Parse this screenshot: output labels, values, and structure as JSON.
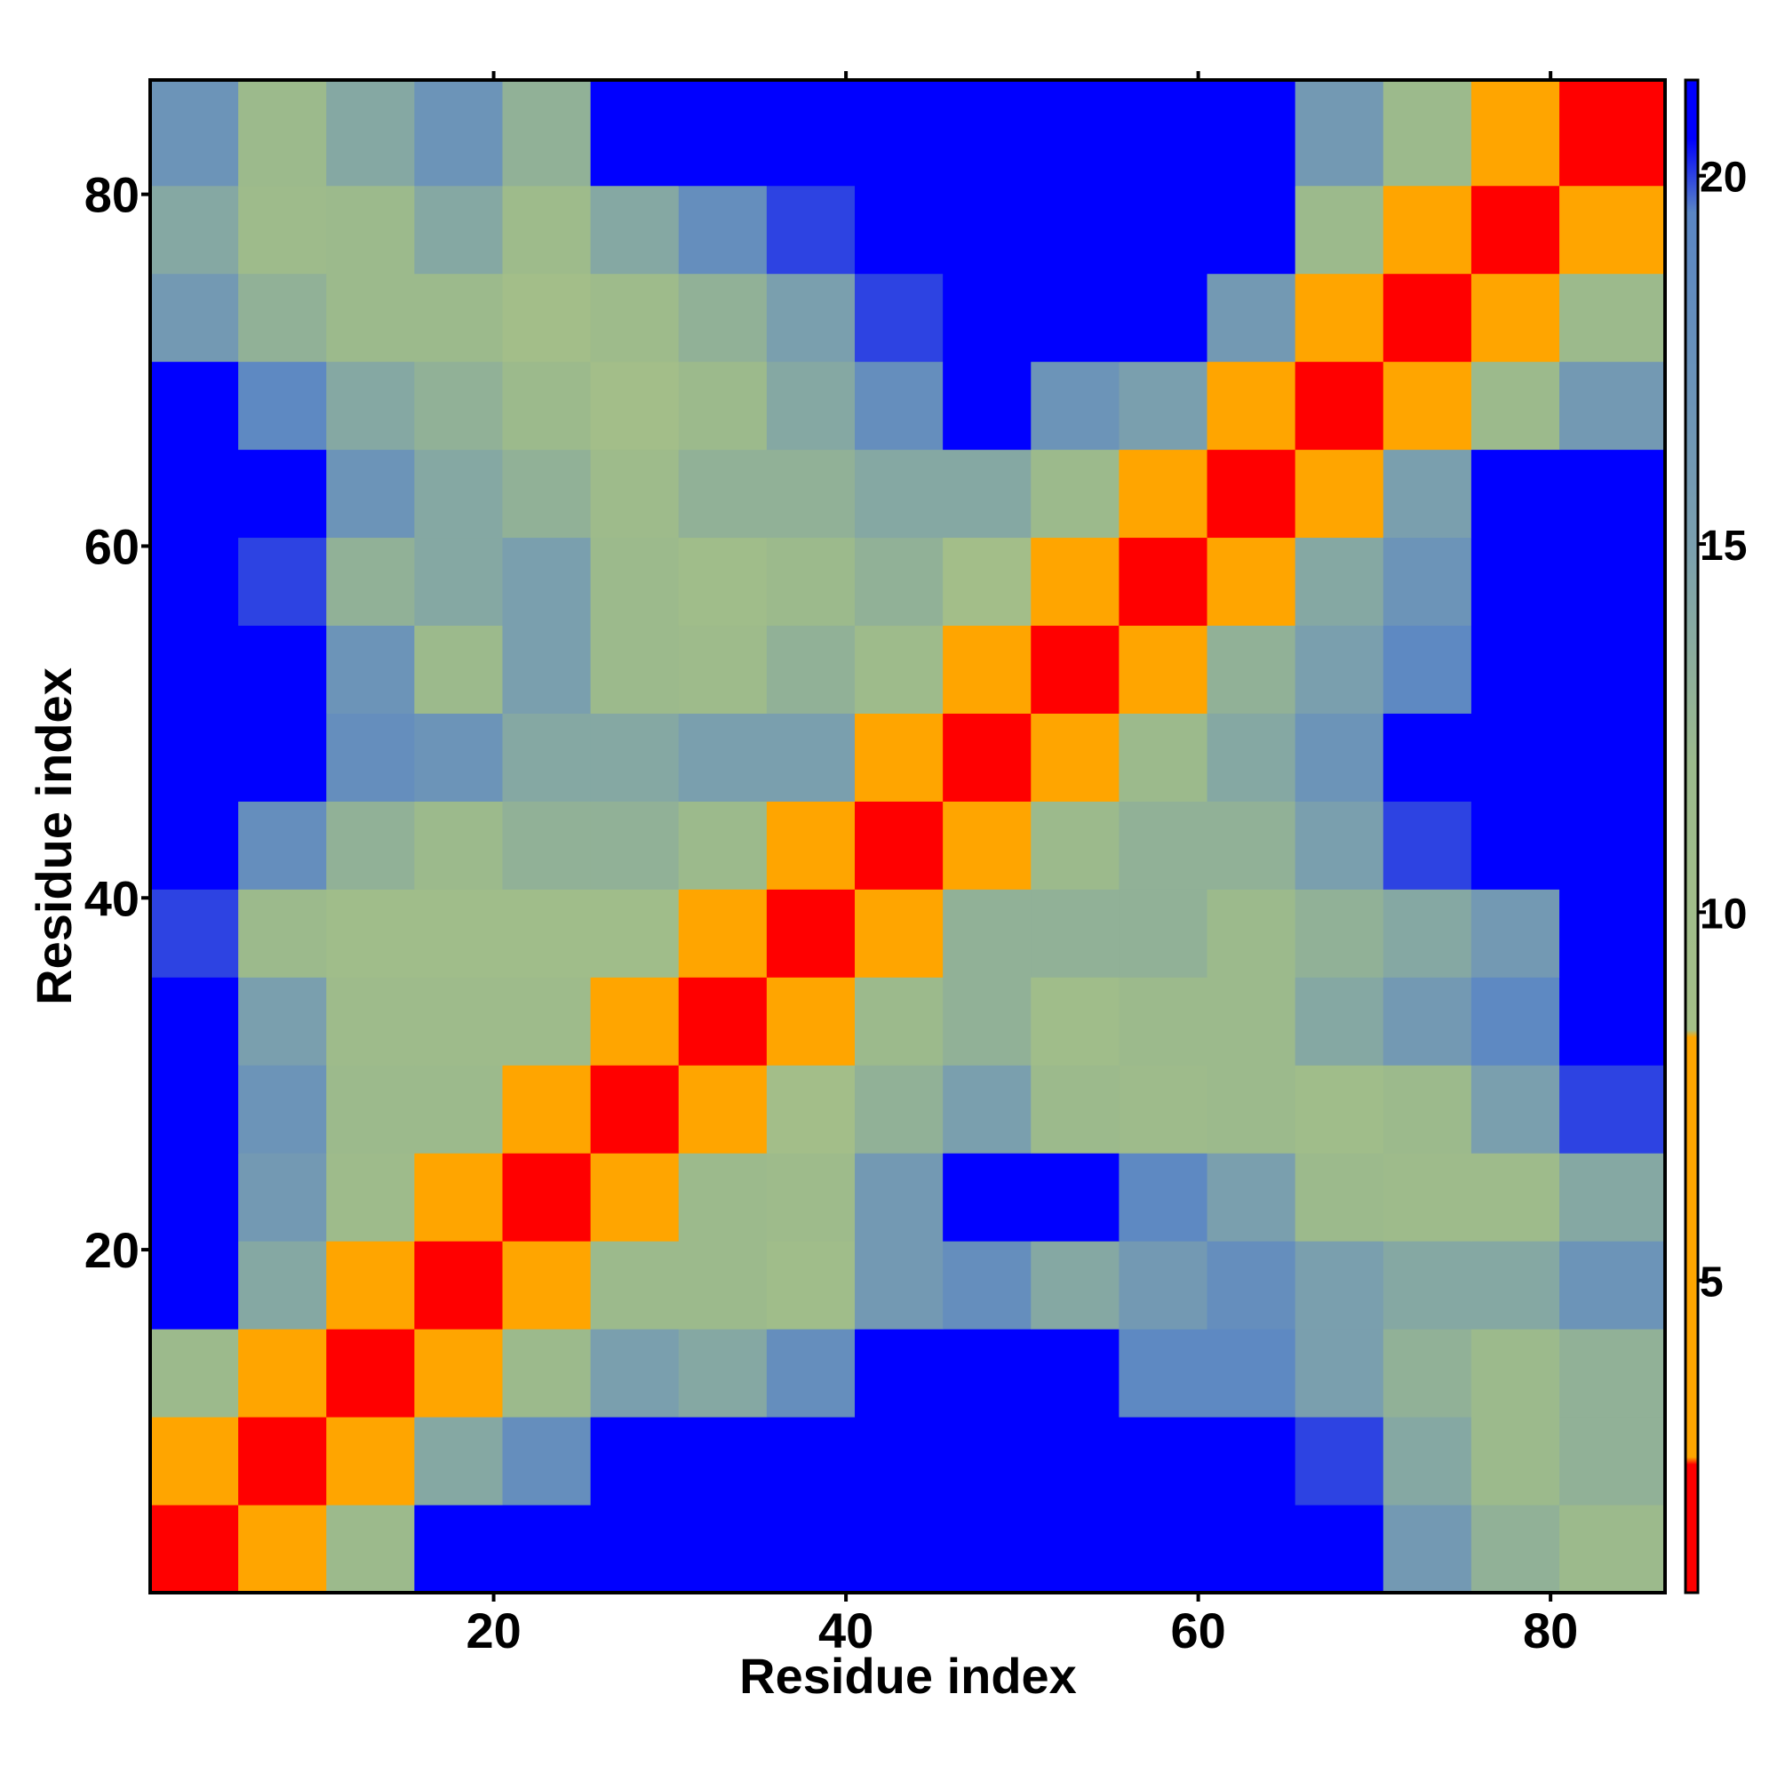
{
  "chart_data": {
    "type": "heatmap",
    "xlabel": "Residue index",
    "ylabel": "Residue index",
    "xlim": [
      0.5,
      86.5
    ],
    "ylim": [
      0.5,
      86.5
    ],
    "xticks": [
      20,
      40,
      60,
      80
    ],
    "yticks": [
      20,
      40,
      60,
      80
    ],
    "bins": [
      0.5,
      5.5,
      10.5,
      15.5,
      20.5,
      25.5,
      30.5,
      35.5,
      40.5,
      45.5,
      50.5,
      55.5,
      60.5,
      65.5,
      70.5,
      75.5,
      80.5,
      86.5
    ],
    "values": [
      [
        2,
        8,
        12,
        22,
        22,
        22,
        22,
        22,
        22,
        22,
        22,
        22,
        22,
        22,
        16,
        13,
        12
      ],
      [
        8,
        2,
        8,
        14,
        18,
        22,
        22,
        22,
        22,
        22,
        22,
        22,
        22,
        20,
        14,
        12,
        13
      ],
      [
        12,
        8,
        2,
        8,
        12,
        15,
        14,
        18,
        22,
        22,
        22,
        19,
        19,
        15,
        13,
        12,
        13
      ],
      [
        22,
        14,
        8,
        2,
        7,
        12,
        12,
        10,
        16,
        18,
        14,
        16,
        18,
        15,
        14,
        14,
        17
      ],
      [
        22,
        16,
        11,
        7,
        2,
        8,
        12,
        11,
        16,
        22,
        21,
        19,
        15,
        12,
        11,
        11,
        14
      ],
      [
        22,
        17,
        12,
        12,
        8,
        2,
        7,
        9,
        13,
        15,
        12,
        11,
        12,
        10,
        12,
        15,
        20
      ],
      [
        22,
        15,
        11,
        11,
        11,
        7,
        2,
        7,
        12,
        13,
        10,
        12,
        12,
        14,
        16,
        19,
        22
      ],
      [
        20,
        12,
        10,
        10,
        10,
        10,
        7,
        2,
        7,
        13,
        13,
        13,
        12,
        13,
        14,
        16,
        21
      ],
      [
        22,
        18,
        13,
        12,
        13,
        13,
        12,
        7,
        2,
        7,
        12,
        13,
        13,
        15,
        20,
        22,
        22
      ],
      [
        22,
        22,
        18,
        17,
        14,
        14,
        15,
        15,
        8,
        2,
        7,
        12,
        14,
        17,
        22,
        22,
        22
      ],
      [
        22,
        22,
        17,
        12,
        15,
        12,
        11,
        13,
        11,
        7,
        2,
        7,
        13,
        15,
        19,
        21,
        22
      ],
      [
        22,
        20,
        13,
        14,
        15,
        12,
        10,
        12,
        13,
        9,
        7,
        2,
        8,
        14,
        17,
        22,
        22
      ],
      [
        22,
        22,
        17,
        14,
        13,
        11,
        13,
        13,
        14,
        14,
        12,
        8,
        2,
        8,
        15,
        22,
        22
      ],
      [
        22,
        19,
        14,
        13,
        12,
        9,
        12,
        14,
        18,
        22,
        17,
        15,
        8,
        2,
        7,
        12,
        16
      ],
      [
        16,
        13,
        12,
        12,
        9,
        11,
        13,
        15,
        20,
        22,
        22,
        21,
        16,
        7,
        2,
        7,
        12
      ],
      [
        14,
        11,
        12,
        14,
        11,
        14,
        18,
        20,
        22,
        22,
        22,
        22,
        22,
        12,
        7,
        2,
        7
      ],
      [
        17,
        12,
        14,
        17,
        13,
        21,
        22,
        22,
        22,
        22,
        22,
        22,
        22,
        16,
        12,
        7,
        2
      ]
    ],
    "colorbar": {
      "lim": [
        0.76,
        21.3
      ],
      "ticks": [
        5,
        10,
        15,
        20
      ],
      "colorscale": [
        [
          0.76,
          "#ff0000"
        ],
        [
          2.5,
          "#ff0000"
        ],
        [
          2.6,
          "#ffa500"
        ],
        [
          8.3,
          "#ffa500"
        ],
        [
          8.4,
          "#a4bf88"
        ],
        [
          12,
          "#9cba8c"
        ],
        [
          15,
          "#7a9fae"
        ],
        [
          19.5,
          "#5a86c4"
        ],
        [
          20.5,
          "#0000ff"
        ],
        [
          21.3,
          "#0000ff"
        ]
      ]
    }
  }
}
